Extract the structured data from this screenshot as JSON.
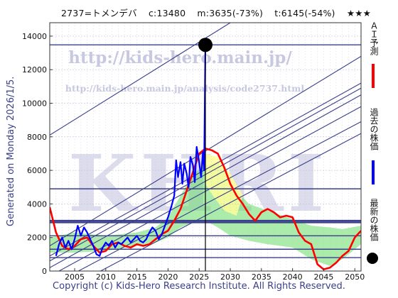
{
  "header": {
    "code_name": "2737=トメンデバ",
    "current": "c:13480",
    "min": "m:3635(-73%)",
    "target": "t:6145(-54%)",
    "stars": "★★★"
  },
  "side_text": "Generated on Monday 2026/1/5.",
  "copyright": "Copyright (c) Kids-Hero Research Institute. All Rights Reserved.",
  "watermarks": {
    "url_main": "http://kids-hero.main.jp/",
    "url_analysis": "http://kids-hero.main.jp/analysis/code2737.html",
    "logo": "KHRI"
  },
  "legend": {
    "ai_forecast": "ＡＩ予測",
    "past_price": "過去の株価",
    "latest_price": "最新の株価"
  },
  "colors": {
    "ai_forecast": "#ff0000",
    "past_price": "#0000ff",
    "latest_price": "#000000",
    "band_green": "#66dd66",
    "band_yellow": "#ffff99",
    "grid_line": "#3a3f8a"
  },
  "chart_data": {
    "type": "line",
    "xlim": [
      2001,
      2051
    ],
    "ylim": [
      0,
      14800
    ],
    "x_ticks": [
      2005,
      2010,
      2015,
      2020,
      2025,
      2030,
      2035,
      2040,
      2045,
      2050
    ],
    "y_ticks": [
      0,
      2000,
      4000,
      6000,
      8000,
      10000,
      12000,
      14000
    ],
    "latest_point": {
      "x": 2026.0,
      "y": 13480
    },
    "horizontal_levels": [
      13480,
      4900,
      3000,
      2900,
      2100,
      1300,
      800
    ],
    "series": [
      {
        "name": "ＡＩ予測",
        "color": "#ff0000",
        "x": [
          2001,
          2002,
          2003,
          2004,
          2005,
          2006,
          2007,
          2008,
          2009,
          2010,
          2011,
          2012,
          2013,
          2014,
          2015,
          2016,
          2017,
          2018,
          2019,
          2020,
          2021,
          2022,
          2023,
          2024,
          2025,
          2026,
          2027,
          2028,
          2029,
          2030,
          2031,
          2032,
          2033,
          2034,
          2035,
          2036,
          2037,
          2038,
          2039,
          2040,
          2041,
          2042,
          2043,
          2044,
          2045,
          2046,
          2047,
          2048,
          2049,
          2050,
          2051
        ],
        "y": [
          3800,
          2300,
          1500,
          1300,
          1500,
          1900,
          2000,
          1500,
          1100,
          1200,
          1600,
          1700,
          1500,
          1400,
          1600,
          1500,
          1600,
          1900,
          2200,
          2400,
          3000,
          3700,
          4800,
          5900,
          7000,
          7300,
          7200,
          7000,
          6200,
          5200,
          4500,
          4000,
          3400,
          3000,
          3500,
          3700,
          3500,
          3200,
          3300,
          3200,
          2300,
          1800,
          1600,
          400,
          100,
          200,
          500,
          900,
          1200,
          2000,
          2400
        ]
      },
      {
        "name": "過去の株価",
        "color": "#0000ff",
        "x": [
          2002.0,
          2002.5,
          2003.0,
          2003.5,
          2004.0,
          2004.5,
          2005.0,
          2005.5,
          2006.0,
          2006.5,
          2007.0,
          2007.5,
          2008.0,
          2008.5,
          2009.0,
          2009.5,
          2010.0,
          2010.5,
          2011.0,
          2011.5,
          2012.0,
          2012.5,
          2013.0,
          2013.5,
          2014.0,
          2014.5,
          2015.0,
          2015.5,
          2016.0,
          2016.5,
          2017.0,
          2017.5,
          2018.0,
          2018.5,
          2019.0,
          2019.5,
          2020.0,
          2020.5,
          2021.0,
          2021.3,
          2021.6,
          2022.0,
          2022.3,
          2022.6,
          2023.0,
          2023.3,
          2023.6,
          2024.0,
          2024.3,
          2024.6,
          2025.0,
          2025.3,
          2025.6,
          2025.8,
          2026.0
        ],
        "y": [
          900,
          1600,
          2000,
          1400,
          1800,
          1300,
          1900,
          2700,
          2100,
          2600,
          2300,
          1900,
          1500,
          1000,
          900,
          1400,
          1700,
          1500,
          1800,
          1400,
          1700,
          1600,
          1800,
          2000,
          1700,
          1900,
          2100,
          1800,
          1700,
          1900,
          2300,
          2600,
          2400,
          1900,
          2200,
          2700,
          3200,
          3800,
          4500,
          6600,
          5600,
          6500,
          5200,
          6400,
          5800,
          5000,
          6800,
          6300,
          5300,
          7400,
          6500,
          5600,
          7100,
          6000,
          13480
        ]
      }
    ]
  }
}
